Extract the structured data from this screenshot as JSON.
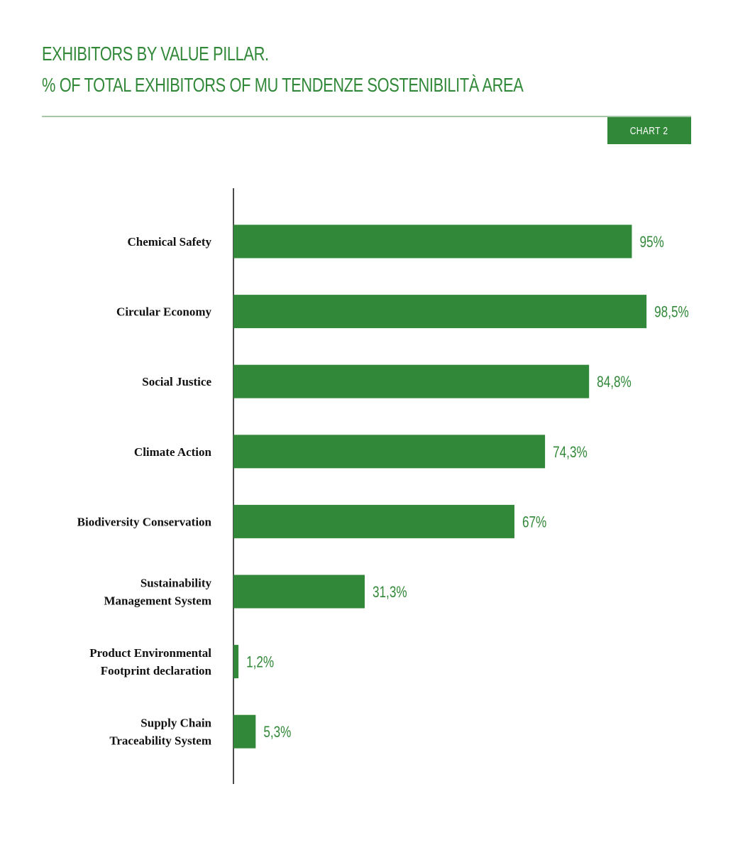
{
  "title_line1": "EXHIBITORS BY VALUE PILLAR.",
  "title_line2": "% OF TOTAL EXHIBITORS OF MU TENDENZE SOSTENIBILITÀ AREA",
  "badge": "CHART 2",
  "colors": {
    "bar": "#328839",
    "label": "#328839",
    "axis": "#111111",
    "rule": "#a6c8a8"
  },
  "chart_data": {
    "type": "bar",
    "orientation": "horizontal",
    "categories": [
      "Chemical Safety",
      "Circular Economy",
      "Social Justice",
      "Climate Action",
      "Biodiversity Conservation",
      "Sustainability Management System",
      "Product Environmental Footprint declaration",
      "Supply Chain Traceability System"
    ],
    "category_lines": [
      [
        "Chemical Safety"
      ],
      [
        "Circular Economy"
      ],
      [
        "Social Justice"
      ],
      [
        "Climate Action"
      ],
      [
        "Biodiversity Conservation"
      ],
      [
        "Sustainability",
        "Management System"
      ],
      [
        "Product Environmental",
        "Footprint declaration"
      ],
      [
        "Supply Chain",
        "Traceability System"
      ]
    ],
    "values": [
      95,
      98.5,
      84.8,
      74.3,
      67,
      31.3,
      1.2,
      5.3
    ],
    "value_labels": [
      "95%",
      "98,5%",
      "84,8%",
      "74,3%",
      "67%",
      "31,3%",
      "1,2%",
      "5,3%"
    ],
    "xlim": [
      0,
      100
    ],
    "grid": false,
    "legend": "none"
  }
}
